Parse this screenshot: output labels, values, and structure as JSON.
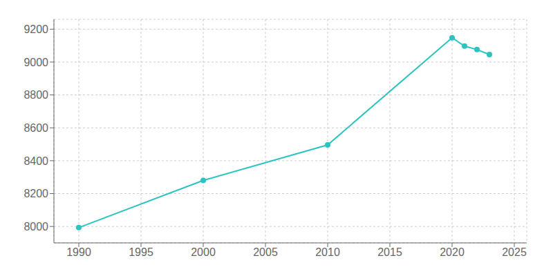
{
  "chart_data": {
    "type": "line",
    "x": [
      1990,
      2000,
      2010,
      2020,
      2021,
      2022,
      2023
    ],
    "values": [
      7993,
      8280,
      8496,
      9148,
      9097,
      9076,
      9046
    ],
    "color": "#2bc4c1",
    "marker": "circle",
    "xlim": [
      1988,
      2026
    ],
    "ylim": [
      7900,
      9260
    ],
    "xticks": [
      1990,
      1995,
      2000,
      2005,
      2010,
      2015,
      2020,
      2025
    ],
    "yticks": [
      8000,
      8200,
      8400,
      8600,
      8800,
      9000,
      9200
    ],
    "grid": true
  }
}
